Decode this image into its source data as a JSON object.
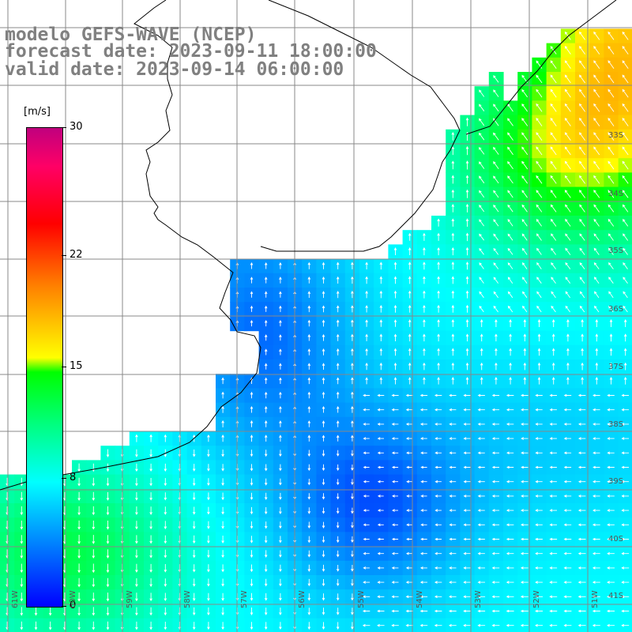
{
  "title": {
    "line1": "modelo GEFS-WAVE (NCEP)",
    "line2": "forecast date: 2023-09-11 18:00:00",
    "line3": "valid date: 2023-09-14 06:00:00"
  },
  "colorbar": {
    "unit": "[m/s]",
    "ticks": [
      "30",
      "22",
      "15",
      "8",
      "0"
    ],
    "tick_values": [
      30,
      22,
      15,
      8,
      0
    ],
    "min": 0,
    "max": 30,
    "colors": [
      "#0000ff",
      "#00ffff",
      "#00ff00",
      "#ffff00",
      "#ff0000",
      "#c0007e"
    ]
  },
  "map": {
    "latitude_labels": [
      "33S",
      "34S",
      "35S",
      "36S",
      "37S",
      "38S",
      "39S",
      "40S",
      "41S"
    ],
    "longitude_labels": [
      "61W",
      "60W",
      "59W",
      "58W",
      "57W",
      "56W",
      "55W",
      "54W",
      "53W",
      "52W",
      "51W"
    ],
    "land_color": "#ffffff",
    "grid_color": "#888888",
    "arrow_color": "#ffffff"
  }
}
